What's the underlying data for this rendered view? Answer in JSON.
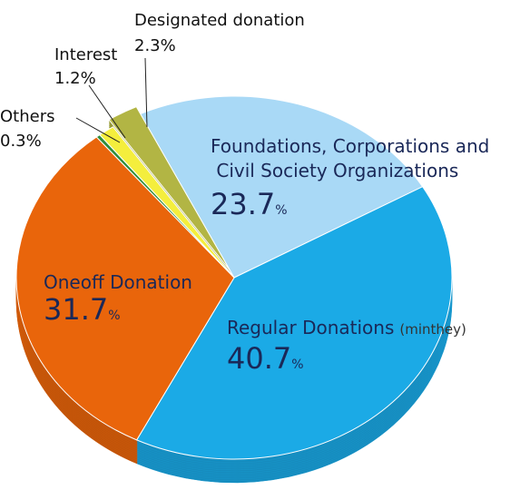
{
  "chart_data": {
    "type": "pie",
    "categories": [
      "Foundations, Corporations and\nCivil Society Organizations",
      "Regular Donations",
      "Oneoff Donation",
      "Others",
      "Interest",
      "Designated donation"
    ],
    "values": [
      23.7,
      40.7,
      31.7,
      0.3,
      1.2,
      2.3
    ],
    "value_labels": [
      "23.7%",
      "40.7%",
      "31.7%",
      "0.3%",
      "1.2%",
      "2.3%"
    ],
    "colors": [
      "#a9d9f6",
      "#1baae6",
      "#e9650b",
      "#2f8c3b",
      "#f4ee3d",
      "#b2b544"
    ],
    "annotation": "(minthey)",
    "three_d": true
  }
}
